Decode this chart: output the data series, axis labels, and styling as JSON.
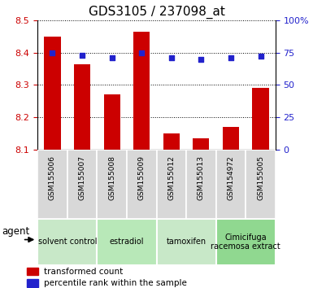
{
  "title": "GDS3105 / 237098_at",
  "samples": [
    "GSM155006",
    "GSM155007",
    "GSM155008",
    "GSM155009",
    "GSM155012",
    "GSM155013",
    "GSM154972",
    "GSM155005"
  ],
  "red_values": [
    8.45,
    8.365,
    8.27,
    8.465,
    8.15,
    8.135,
    8.17,
    8.29
  ],
  "blue_values": [
    75,
    73,
    71,
    75,
    71,
    70,
    71,
    72
  ],
  "ylim_left": [
    8.1,
    8.5
  ],
  "ylim_right": [
    0,
    100
  ],
  "yticks_left": [
    8.1,
    8.2,
    8.3,
    8.4,
    8.5
  ],
  "yticks_right": [
    0,
    25,
    50,
    75,
    100
  ],
  "groups": [
    {
      "label": "solvent control",
      "start": 0,
      "end": 2,
      "color": "#c8e8c8"
    },
    {
      "label": "estradiol",
      "start": 2,
      "end": 4,
      "color": "#b8e8b8"
    },
    {
      "label": "tamoxifen",
      "start": 4,
      "end": 6,
      "color": "#c8e8c8"
    },
    {
      "label": "Cimicifuga\nracemosa extract",
      "start": 6,
      "end": 8,
      "color": "#90d890"
    }
  ],
  "bar_color": "#cc0000",
  "dot_color": "#2222cc",
  "bar_width": 0.55,
  "label_red": "transformed count",
  "label_blue": "percentile rank within the sample",
  "agent_label": "agent",
  "tick_label_color_left": "#cc0000",
  "tick_label_color_right": "#2222cc",
  "title_fontsize": 11,
  "axis_fontsize": 8,
  "sample_label_fontsize": 6.5,
  "legend_fontsize": 7.5,
  "group_label_fontsize": 7,
  "agent_fontsize": 8.5,
  "sample_box_color": "#d8d8d8"
}
